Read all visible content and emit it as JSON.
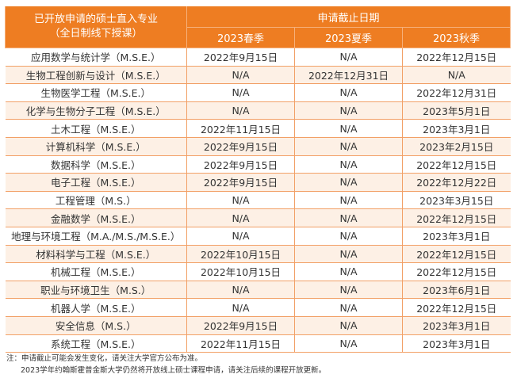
{
  "header": {
    "program_title": "已开放申请的硕士直入专业",
    "program_subtitle": "（全日制线下授课）",
    "deadline_title": "申请截止日期",
    "seasons": [
      "2023春季",
      "2023夏季",
      "2023秋季"
    ]
  },
  "rows": [
    [
      "应用数学与统计学（M.S.E.）",
      "2022年9月15日",
      "N/A",
      "2022年12月15日"
    ],
    [
      "生物工程创新与设计（M.S.E.）",
      "N/A",
      "2022年12月31日",
      "N/A"
    ],
    [
      "生物医学工程（M.S.E.）",
      "N/A",
      "N/A",
      "2022年12月31日"
    ],
    [
      "化学与生物分子工程（M.S.E.）",
      "N/A",
      "N/A",
      "2023年5月1日"
    ],
    [
      "土木工程（M.S.E.）",
      "2022年11月15日",
      "N/A",
      "2023年3月1日"
    ],
    [
      "计算机科学（M.S.E.）",
      "2022年9月15日",
      "N/A",
      "2023年2月15日"
    ],
    [
      "数据科学（M.S.E.）",
      "2022年9月15日",
      "N/A",
      "2022年12月15日"
    ],
    [
      "电子工程（M.S.E.）",
      "2022年9月15日",
      "N/A",
      "2022年12月22日"
    ],
    [
      "工程管理（M.S.）",
      "N/A",
      "N/A",
      "2023年3月15日"
    ],
    [
      "金融数学（M.S.E.）",
      "N/A",
      "N/A",
      "2022年12月15日"
    ],
    [
      "地理与环境工程（M.A./M.S./M.S.E.）",
      "N/A",
      "N/A",
      "2023年3月1日"
    ],
    [
      "材料科学与工程（M.S.E.）",
      "2022年10月15日",
      "N/A",
      "2022年12月15日"
    ],
    [
      "机械工程（M.S.E.）",
      "2022年10月15日",
      "N/A",
      "2022年12月15日"
    ],
    [
      "职业与环境卫生（M.S.）",
      "N/A",
      "N/A",
      "2023年6月1日"
    ],
    [
      "机器人学（M.S.E.）",
      "N/A",
      "N/A",
      "2022年12月15日"
    ],
    [
      "安全信息（M.S.）",
      "2022年9月15日",
      "N/A",
      "2023年3月1日"
    ],
    [
      "系统工程（M.S.E.）",
      "2022年11月15日",
      "N/A",
      "2023年3月1日"
    ]
  ],
  "notes": [
    "注：申请截止可能会发生变化，请关注大学官方公布为准。",
    "2023学年约翰斯霍普金斯大学仍然将开放线上硕士课程申请，请关注后续的课程开放更新。"
  ],
  "colors": {
    "header": "#ee7d22",
    "alt_row": "#fdf0e5",
    "border": "#f2a066"
  }
}
